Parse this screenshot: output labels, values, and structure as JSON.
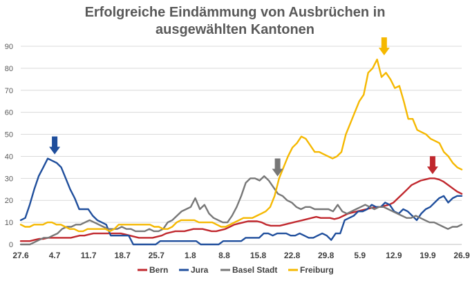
{
  "chart_data": {
    "type": "line",
    "title_line1": "Erfolgreiche Eindämmung von Ausbrüchen in",
    "title_line2": "ausgewählten Kantonen",
    "xlabel": "",
    "ylabel": "",
    "ylim": [
      0,
      90
    ],
    "yticks": [
      0,
      10,
      20,
      30,
      40,
      50,
      60,
      70,
      80,
      90
    ],
    "grid": true,
    "legend_position": "bottom",
    "x_tick_labels": [
      "27.6",
      "4.7",
      "11.7",
      "18.7",
      "25.7",
      "1.8",
      "8.8",
      "15.8",
      "22.8",
      "29.8",
      "5.9",
      "12.9",
      "19.9",
      "26.9"
    ],
    "x_start_day": 0,
    "x_end_day": 91,
    "series": [
      {
        "name": "Bern",
        "color": "#c0272d",
        "values": [
          1.5,
          1.5,
          1.5,
          2,
          2.5,
          2.5,
          3,
          3,
          3,
          3,
          3,
          3,
          3.5,
          4,
          4,
          4.5,
          5,
          5,
          5,
          5,
          5,
          5,
          5,
          4.5,
          4,
          3.5,
          3,
          3,
          3,
          3,
          3.5,
          4,
          5,
          5.5,
          6,
          6,
          6,
          6.5,
          7,
          7,
          7,
          6.5,
          6,
          6,
          6.5,
          7,
          8,
          9,
          9.5,
          10,
          10.5,
          10.5,
          10.5,
          10,
          9,
          8.5,
          8.5,
          8.5,
          9,
          9.5,
          10,
          10.5,
          11,
          11.5,
          12,
          12.5,
          12,
          12,
          12,
          11.5,
          12,
          13,
          14,
          14.5,
          15,
          15.5,
          16,
          16.5,
          17,
          17,
          17.5,
          18,
          19,
          21,
          23,
          25,
          27,
          28,
          29,
          29.5,
          30,
          30,
          29.5,
          28.5,
          27,
          25.5,
          24,
          23
        ]
      },
      {
        "name": "Jura",
        "color": "#1f4e9c",
        "values": [
          11,
          12,
          18,
          25,
          31,
          35,
          39,
          38,
          37,
          35,
          30,
          25,
          21,
          16,
          16,
          16,
          13,
          11,
          10,
          9,
          4,
          4,
          4,
          4,
          4,
          0,
          0,
          0,
          0,
          0,
          0,
          1.5,
          1.5,
          1.5,
          1.5,
          1.5,
          1.5,
          1.5,
          1.5,
          1.5,
          0,
          0,
          0,
          0,
          0,
          1.5,
          1.5,
          1.5,
          1.5,
          1.5,
          3,
          3,
          3,
          3,
          5,
          5,
          4,
          5,
          5,
          5,
          4,
          4,
          5,
          4,
          3,
          3,
          4,
          5,
          4,
          2,
          5,
          5,
          11,
          12,
          13,
          15,
          15,
          16,
          18,
          17,
          17,
          19,
          18,
          15,
          14,
          16,
          15,
          13,
          11,
          14,
          16,
          17,
          19,
          21,
          22,
          19,
          21,
          22,
          22
        ]
      },
      {
        "name": "Basel Stadt",
        "color": "#777777",
        "values": [
          0,
          0,
          0,
          1,
          2,
          3,
          3,
          4,
          5,
          7,
          8,
          8,
          9,
          9,
          10,
          11,
          10,
          9,
          8,
          7,
          7,
          7,
          8,
          7,
          7,
          6,
          6,
          6,
          7,
          6,
          6,
          7,
          10,
          11,
          13,
          15,
          16,
          17,
          21,
          16,
          18,
          14,
          12,
          11,
          10,
          10,
          13,
          17,
          22,
          28,
          30,
          30,
          29,
          31,
          29,
          26,
          23,
          22,
          20,
          19,
          17,
          16,
          17,
          17,
          16,
          16,
          16,
          16,
          15,
          18,
          15,
          14,
          15,
          16,
          17,
          18,
          17,
          16,
          17,
          17,
          16,
          15,
          14,
          13,
          12,
          12,
          13,
          12,
          11,
          10,
          10,
          9,
          8,
          7,
          8,
          8,
          9
        ]
      },
      {
        "name": "Freiburg",
        "color": "#f5b800",
        "values": [
          9,
          8,
          8,
          9,
          9,
          9,
          10,
          10,
          9,
          9,
          8,
          7,
          7,
          6,
          6,
          7,
          7,
          7,
          7,
          7,
          6,
          7,
          9,
          9,
          9,
          9,
          9,
          9,
          9,
          9,
          8,
          8,
          7,
          7,
          8,
          10,
          11,
          11,
          11,
          11,
          10,
          10,
          10,
          10,
          9,
          8,
          8,
          9,
          10,
          11,
          12,
          12,
          12,
          13,
          14,
          15,
          17,
          22,
          30,
          35,
          40,
          44,
          46,
          49,
          48,
          45,
          42,
          42,
          41,
          40,
          39,
          40,
          42,
          50,
          55,
          60,
          65,
          68,
          78,
          80,
          84,
          76,
          78,
          75,
          71,
          72,
          65,
          57,
          57,
          52,
          51,
          50,
          48,
          47,
          46,
          42,
          40,
          37,
          35,
          34
        ]
      }
    ],
    "annotations": [
      {
        "type": "arrow-down",
        "series": "Jura",
        "day": 7
      },
      {
        "type": "arrow-down",
        "series": "Basel Stadt",
        "day": 53
      },
      {
        "type": "arrow-down",
        "series": "Freiburg",
        "day": 75
      },
      {
        "type": "arrow-down",
        "series": "Bern",
        "day": 85
      }
    ]
  }
}
